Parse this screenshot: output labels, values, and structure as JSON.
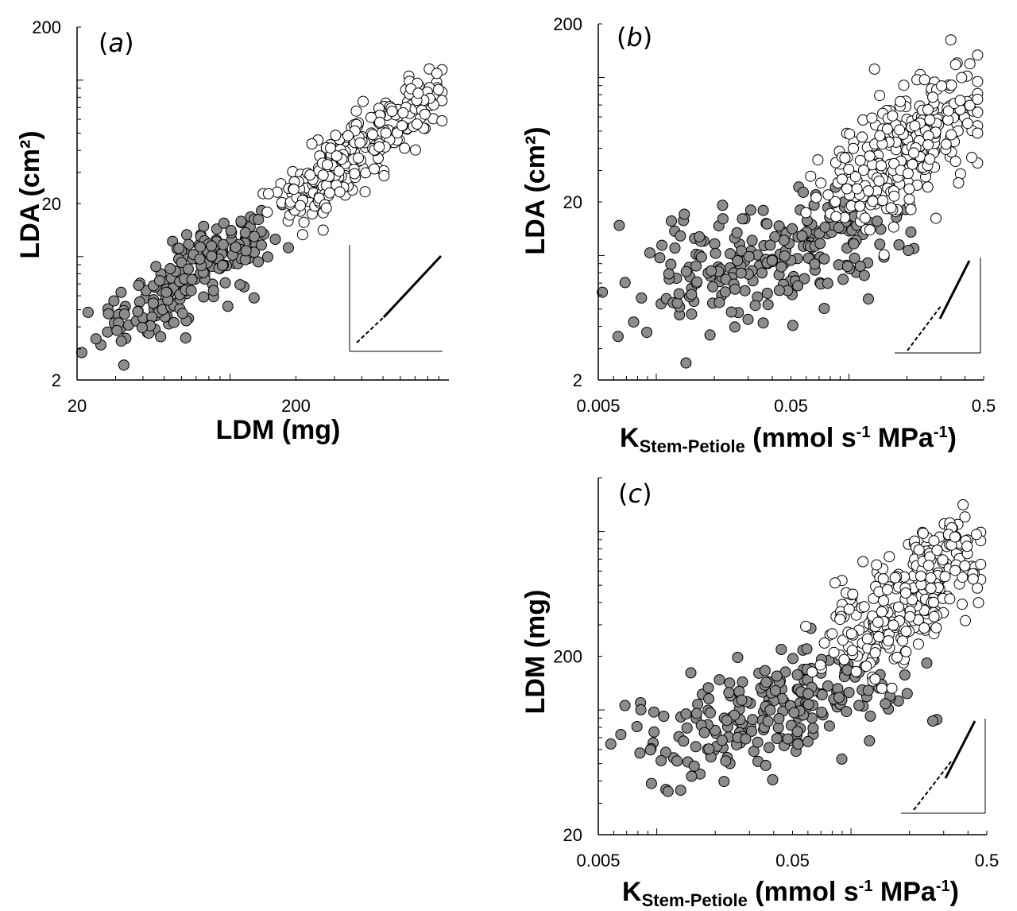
{
  "chart_data": [
    {
      "panel": "(a)",
      "panel_letter": "a",
      "type": "scatter",
      "xlabel": "LDM (mg)",
      "ylabel": "LDA (cm²)",
      "xscale": "log",
      "yscale": "log",
      "xlim": [
        20,
        1000
      ],
      "ylim": [
        2,
        200
      ],
      "xticks": [
        20,
        200
      ],
      "yticks": [
        2,
        20,
        200
      ],
      "xtick_labels": [
        "20",
        "200"
      ],
      "ytick_labels": [
        "2",
        "20",
        "200"
      ],
      "inset": "bottom-right",
      "series": [
        {
          "style": "filled",
          "color": "#8c8c8c",
          "center": [
            [
              30,
              3.5
            ],
            [
              60,
              7.5
            ],
            [
              120,
              13
            ]
          ],
          "spread_x": 0.09,
          "spread_y": 0.09,
          "n": 210,
          "seed": 1
        },
        {
          "style": "open",
          "color": "#ffffff",
          "center": [
            [
              190,
              18
            ],
            [
              400,
              40
            ],
            [
              880,
              95
            ]
          ],
          "spread_x": 0.07,
          "spread_y": 0.07,
          "n": 260,
          "seed": 2
        }
      ]
    },
    {
      "panel": "(b)",
      "panel_letter": "b",
      "type": "scatter",
      "xlabel_main": "K",
      "xlabel_sub": "Stem-Petiole",
      "xlabel_unit_a": " (mmol s",
      "xlabel_sup_a": "-1",
      "xlabel_unit_b": " MPa",
      "xlabel_sup_b": "-1",
      "xlabel_close": ")",
      "ylabel": "LDA (cm²)",
      "xscale": "log",
      "yscale": "log",
      "xlim": [
        0.005,
        0.5
      ],
      "ylim": [
        2,
        200
      ],
      "xticks": [
        0.005,
        0.05,
        0.5
      ],
      "yticks": [
        2,
        20,
        200
      ],
      "xtick_labels": [
        "0.005",
        "0.05",
        "0.5"
      ],
      "ytick_labels": [
        "2",
        "20",
        "200"
      ],
      "inset": "bottom-right",
      "series": [
        {
          "style": "filled",
          "color": "#8c8c8c",
          "center": [
            [
              0.012,
              5.5
            ],
            [
              0.04,
              10
            ],
            [
              0.1,
              14
            ]
          ],
          "spread_x": 0.22,
          "spread_y": 0.16,
          "n": 230,
          "seed": 3
        },
        {
          "style": "open",
          "color": "#ffffff",
          "center": [
            [
              0.1,
              20
            ],
            [
              0.2,
              40
            ],
            [
              0.35,
              85
            ]
          ],
          "spread_x": 0.12,
          "spread_y": 0.14,
          "n": 280,
          "seed": 4
        }
      ]
    },
    {
      "panel": "(c)",
      "panel_letter": "c",
      "type": "scatter",
      "xlabel_main": "K",
      "xlabel_sub": "Stem-Petiole",
      "xlabel_unit_a": " (mmol s",
      "xlabel_sup_a": "-1",
      "xlabel_unit_b": " MPa",
      "xlabel_sup_b": "-1",
      "xlabel_close": ")",
      "ylabel": "LDM (mg)",
      "xscale": "log",
      "yscale": "log",
      "xlim": [
        0.005,
        0.5
      ],
      "ylim": [
        20,
        2000
      ],
      "xticks": [
        0.005,
        0.05,
        0.5
      ],
      "yticks": [
        20,
        200
      ],
      "xtick_labels": [
        "0.005",
        "0.05",
        "0.5"
      ],
      "ytick_labels": [
        "20",
        "200"
      ],
      "inset": "bottom-right",
      "series": [
        {
          "style": "filled",
          "color": "#8c8c8c",
          "center": [
            [
              0.012,
              55
            ],
            [
              0.04,
              100
            ],
            [
              0.1,
              150
            ]
          ],
          "spread_x": 0.22,
          "spread_y": 0.14,
          "n": 230,
          "seed": 5
        },
        {
          "style": "open",
          "color": "#ffffff",
          "center": [
            [
              0.1,
              230
            ],
            [
              0.2,
              400
            ],
            [
              0.35,
              900
            ]
          ],
          "spread_x": 0.12,
          "spread_y": 0.13,
          "n": 280,
          "seed": 6
        }
      ]
    }
  ]
}
